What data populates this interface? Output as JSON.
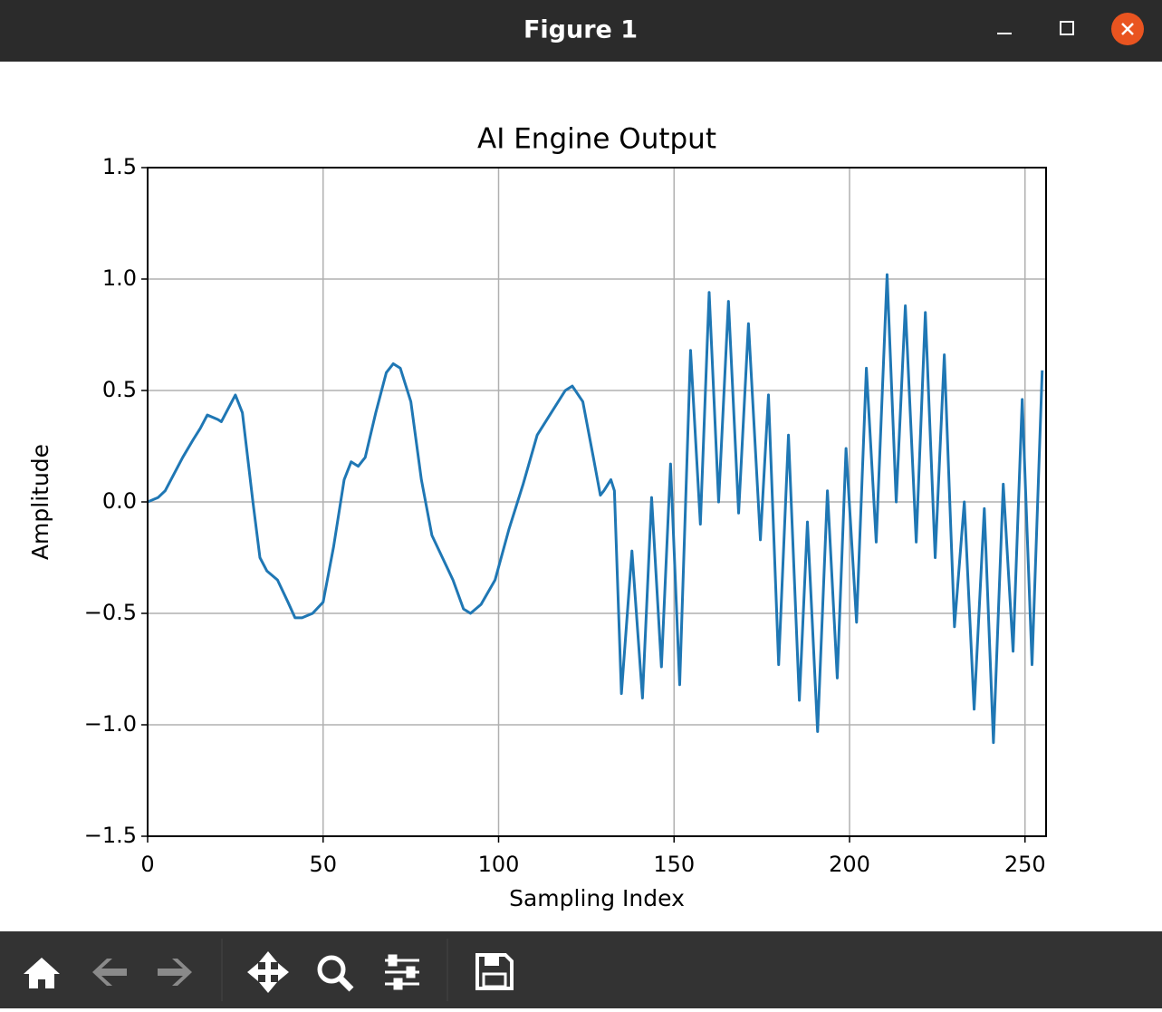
{
  "window": {
    "title": "Figure 1"
  },
  "chart_data": {
    "type": "line",
    "title": "AI Engine Output",
    "x_label": "Sampling Index",
    "y_label": "Amplitude",
    "xlim": [
      0,
      256
    ],
    "ylim": [
      -1.5,
      1.5
    ],
    "xticks": [
      0,
      50,
      100,
      150,
      200,
      250
    ],
    "yticks": [
      {
        "value": -1.5,
        "label": "−1.5"
      },
      {
        "value": -1.0,
        "label": "−1.0"
      },
      {
        "value": -0.5,
        "label": "−0.5"
      },
      {
        "value": 0,
        "label": "0.0"
      },
      {
        "value": 0.5,
        "label": "0.5"
      },
      {
        "value": 1.0,
        "label": "1.0"
      },
      {
        "value": 1.5,
        "label": "1.5"
      }
    ],
    "grid": true,
    "series": [
      {
        "color": "#1f77b4",
        "x": [
          0,
          3,
          5,
          8,
          10,
          13,
          15,
          17,
          20,
          21,
          23,
          25,
          27,
          30,
          32,
          34,
          37,
          40,
          42,
          44,
          47,
          50,
          53,
          56,
          58,
          60,
          62,
          65,
          68,
          70,
          72,
          75,
          78,
          81,
          84,
          87,
          90,
          92,
          95,
          99,
          103,
          107,
          111,
          115,
          119,
          121,
          124,
          127,
          129,
          130,
          132,
          133,
          135,
          138,
          141,
          143.6,
          146.4,
          149,
          151.6,
          154.7,
          157.5,
          160,
          162.7,
          165.5,
          168.4,
          171.2,
          174.6,
          176.9,
          179.8,
          182.6,
          185.7,
          188,
          190.9,
          193.7,
          196.5,
          199,
          202,
          204.8,
          207.6,
          210.7,
          213.3,
          215.9,
          219,
          221.6,
          224.4,
          227,
          229.9,
          232.7,
          235.5,
          238.4,
          241,
          243.8,
          246.6,
          249.2,
          252,
          254.9
        ],
        "values": [
          0,
          0.02,
          0.05,
          0.14,
          0.2,
          0.28,
          0.33,
          0.39,
          0.37,
          0.36,
          0.42,
          0.48,
          0.4,
          0.0,
          -0.25,
          -0.31,
          -0.35,
          -0.45,
          -0.52,
          -0.52,
          -0.5,
          -0.45,
          -0.2,
          0.1,
          0.18,
          0.16,
          0.2,
          0.4,
          0.58,
          0.62,
          0.6,
          0.45,
          0.1,
          -0.15,
          -0.25,
          -0.35,
          -0.48,
          -0.5,
          -0.46,
          -0.35,
          -0.12,
          0.08,
          0.3,
          0.4,
          0.5,
          0.52,
          0.45,
          0.2,
          0.03,
          0.05,
          0.1,
          0.05,
          -0.86,
          -0.22,
          -0.88,
          0.02,
          -0.74,
          0.17,
          -0.82,
          0.68,
          -0.1,
          0.94,
          0.0,
          0.9,
          -0.05,
          0.8,
          -0.17,
          0.48,
          -0.73,
          0.3,
          -0.89,
          -0.09,
          -1.03,
          0.05,
          -0.79,
          0.24,
          -0.54,
          0.6,
          -0.18,
          1.02,
          0.0,
          0.88,
          -0.18,
          0.85,
          -0.25,
          0.66,
          -0.56,
          0.0,
          -0.93,
          -0.03,
          -1.08,
          0.08,
          -0.67,
          0.46,
          -0.73,
          0.59
        ]
      }
    ]
  }
}
